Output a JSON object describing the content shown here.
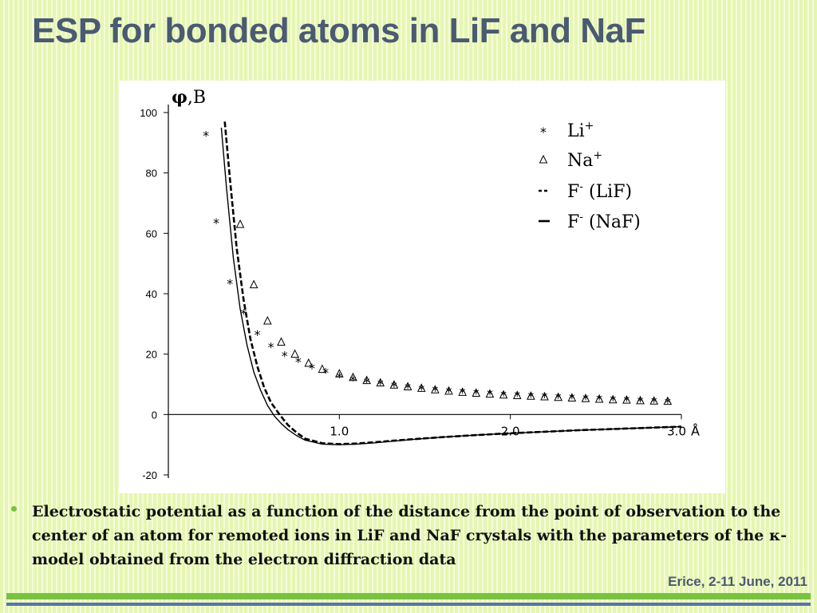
{
  "slide": {
    "title": "ESP for bonded atoms in LiF and NaF",
    "caption_before": "Electrostatic potential as a function of the distance from the point of observation to the center of an atom for remoted ions in LiF and NaF crystals with the parameters of the ",
    "caption_kappa": "κ",
    "caption_after": "-model obtained from the electron diffraction data",
    "footer": "Erice, 2-11 June, 2011"
  },
  "colors": {
    "title": "#4a5a72",
    "accent_green": "#7ac142",
    "accent_blue": "#5574a8",
    "chart_ink": "#000000"
  },
  "chart_data": {
    "type": "line",
    "ylabel_symbol": "φ",
    "ylabel_unit": ",B",
    "x_unit": "Å",
    "xlim": [
      0,
      3.0
    ],
    "ylim": [
      -20,
      100
    ],
    "x_ticks": [
      1.0,
      2.0,
      3.0
    ],
    "x_tick_labels": [
      "1.0",
      "2.0",
      "3.0"
    ],
    "y_ticks": [
      -20,
      0,
      20,
      40,
      60,
      80,
      100
    ],
    "y_tick_labels": [
      "-20",
      "0",
      "20",
      "40",
      "60",
      "80",
      "100"
    ],
    "legend_position": "top-right",
    "legend": [
      {
        "marker": "*",
        "label": "Li",
        "sup": "+"
      },
      {
        "marker": "Δ",
        "label": "Na",
        "sup": "+"
      },
      {
        "marker": "- -",
        "label": "F",
        "sup": "-",
        "suffix": " (LiF)"
      },
      {
        "marker": "—",
        "label": "F",
        "sup": "-",
        "suffix": " (NaF)"
      }
    ],
    "series": [
      {
        "label_key": "Li+",
        "style": "star",
        "x": [
          0.22,
          0.28,
          0.36,
          0.44,
          0.52,
          0.6,
          0.68,
          0.76,
          0.84,
          0.92,
          1.0,
          1.08,
          1.16,
          1.24,
          1.32,
          1.4,
          1.48,
          1.56,
          1.64,
          1.72,
          1.8,
          1.88,
          1.96,
          2.04,
          2.12,
          2.2,
          2.28,
          2.36,
          2.44,
          2.52,
          2.6,
          2.68,
          2.76,
          2.84,
          2.92
        ],
        "y": [
          93,
          64,
          44,
          34,
          27,
          23,
          20,
          18,
          16,
          14.5,
          13,
          12,
          11.3,
          10.6,
          10,
          9.5,
          9,
          8.6,
          8.2,
          7.9,
          7.6,
          7.3,
          7,
          6.8,
          6.6,
          6.4,
          6.2,
          6,
          5.8,
          5.6,
          5.4,
          5.2,
          5,
          4.8,
          4.6
        ]
      },
      {
        "label_key": "Na+",
        "style": "triangle",
        "x": [
          0.42,
          0.5,
          0.58,
          0.66,
          0.74,
          0.82,
          0.9,
          1.0,
          1.08,
          1.16,
          1.24,
          1.32,
          1.4,
          1.48,
          1.56,
          1.64,
          1.72,
          1.8,
          1.88,
          1.96,
          2.04,
          2.12,
          2.2,
          2.28,
          2.36,
          2.44,
          2.52,
          2.6,
          2.68,
          2.76,
          2.84,
          2.92
        ],
        "y": [
          63,
          43,
          31,
          24,
          20,
          17,
          15,
          13.5,
          12.3,
          11.3,
          10.5,
          9.8,
          9.2,
          8.7,
          8.2,
          7.8,
          7.4,
          7.1,
          6.8,
          6.5,
          6.3,
          6.1,
          5.9,
          5.7,
          5.5,
          5.3,
          5.1,
          4.9,
          4.8,
          4.6,
          4.5,
          4.4
        ]
      },
      {
        "label_key": "F- (LiF)",
        "style": "dashed",
        "x": [
          0.33,
          0.36,
          0.4,
          0.44,
          0.48,
          0.52,
          0.56,
          0.6,
          0.65,
          0.7,
          0.75,
          0.8,
          0.9,
          1.0,
          1.1,
          1.2,
          1.4,
          1.6,
          1.8,
          2.0,
          2.2,
          2.4,
          2.6,
          2.8,
          3.0
        ],
        "y": [
          97,
          78,
          55,
          38,
          25,
          16,
          9,
          4,
          0,
          -3.5,
          -6,
          -8,
          -9.5,
          -9.8,
          -9.6,
          -9.2,
          -8.3,
          -7.5,
          -6.8,
          -6.2,
          -5.7,
          -5.2,
          -4.8,
          -4.4,
          -4.0
        ]
      },
      {
        "label_key": "F- (NaF)",
        "style": "solid",
        "x": [
          0.31,
          0.34,
          0.38,
          0.42,
          0.46,
          0.5,
          0.54,
          0.58,
          0.62,
          0.66,
          0.7,
          0.75,
          0.8,
          0.9,
          1.0,
          1.1,
          1.2,
          1.4,
          1.6,
          1.8,
          2.0,
          2.2,
          2.4,
          2.6,
          2.8,
          3.0
        ],
        "y": [
          95,
          75,
          52,
          35,
          23,
          14,
          8,
          3,
          -0.5,
          -3,
          -5,
          -7,
          -8.5,
          -9.8,
          -10,
          -9.8,
          -9.4,
          -8.4,
          -7.5,
          -6.8,
          -6.2,
          -5.7,
          -5.2,
          -4.8,
          -4.4,
          -4.0
        ]
      }
    ]
  }
}
